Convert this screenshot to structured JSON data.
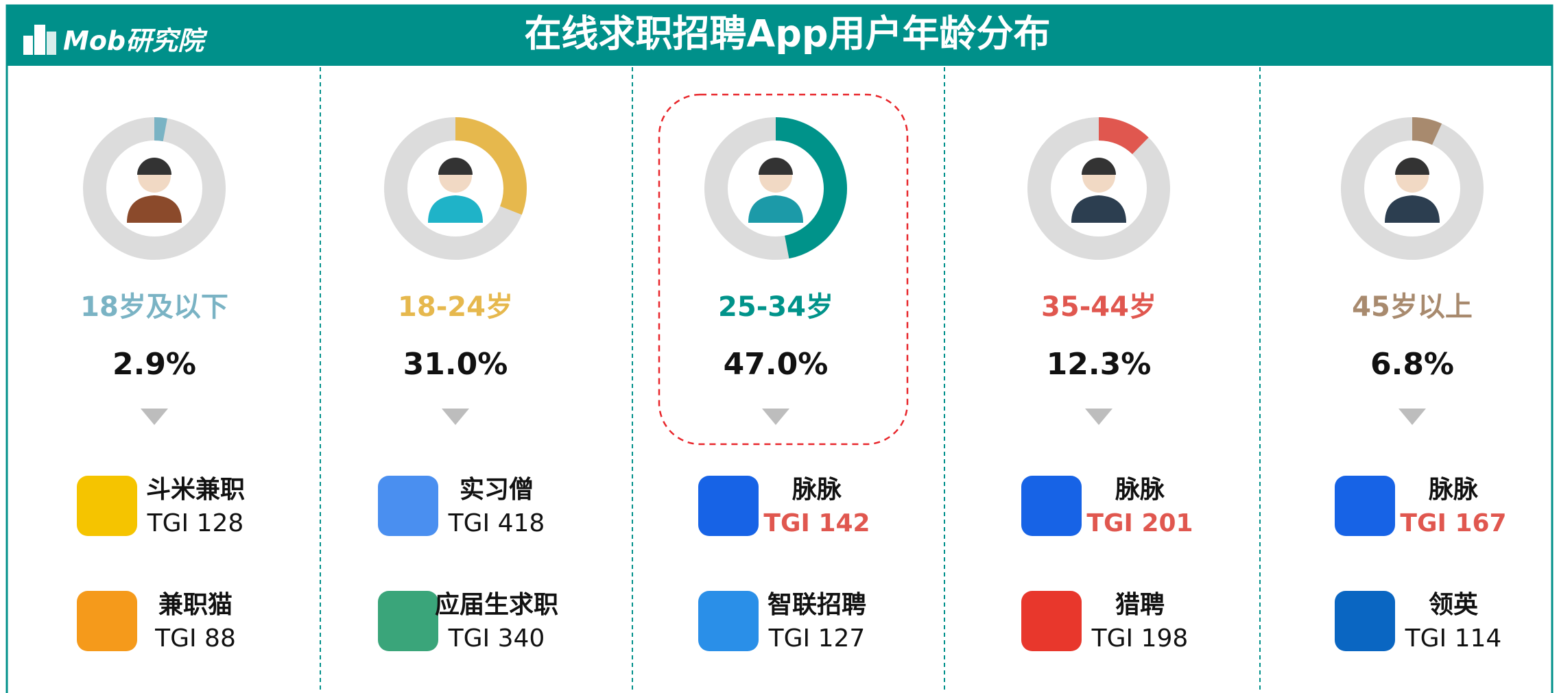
{
  "logo": "Mob研究院",
  "title": "在线求职招聘App用户年龄分布",
  "groups": [
    {
      "label": "18岁及以下",
      "value": 2.9,
      "value_label": "2.9%",
      "color": "#7ab3c4",
      "apps": [
        {
          "name": "斗米兼职",
          "tgi": "TGI 128",
          "icon_color": "#f5c400"
        },
        {
          "name": "兼职猫",
          "tgi": "TGI 88",
          "icon_color": "#f59a1b"
        }
      ]
    },
    {
      "label": "18-24岁",
      "value": 31.0,
      "value_label": "31.0%",
      "color": "#e6b84d",
      "apps": [
        {
          "name": "实习僧",
          "tgi": "TGI 418",
          "icon_color": "#4a8ff0"
        },
        {
          "name": "应届生求职",
          "tgi": "TGI 340",
          "icon_color": "#3aa57a"
        }
      ]
    },
    {
      "label": "25-34岁",
      "value": 47.0,
      "value_label": "47.0%",
      "color": "#00938a",
      "highlight": true,
      "apps": [
        {
          "name": "脉脉",
          "tgi": "TGI 142",
          "icon_color": "#1763e6",
          "tgi_color": "#e0574f"
        },
        {
          "name": "智联招聘",
          "tgi": "TGI 127",
          "icon_color": "#2a8fe8"
        }
      ]
    },
    {
      "label": "35-44岁",
      "value": 12.3,
      "value_label": "12.3%",
      "color": "#e0574f",
      "apps": [
        {
          "name": "脉脉",
          "tgi": "TGI 201",
          "icon_color": "#1763e6",
          "tgi_color": "#e0574f"
        },
        {
          "name": "猎聘",
          "tgi": "TGI 198",
          "icon_color": "#e8372c"
        }
      ]
    },
    {
      "label": "45岁以上",
      "value": 6.8,
      "value_label": "6.8%",
      "color": "#a88a6e",
      "apps": [
        {
          "name": "脉脉",
          "tgi": "TGI 167",
          "icon_color": "#1763e6",
          "tgi_color": "#e0574f"
        },
        {
          "name": "领英",
          "tgi": "TGI 114",
          "icon_color": "#0a66c2"
        }
      ]
    }
  ]
}
